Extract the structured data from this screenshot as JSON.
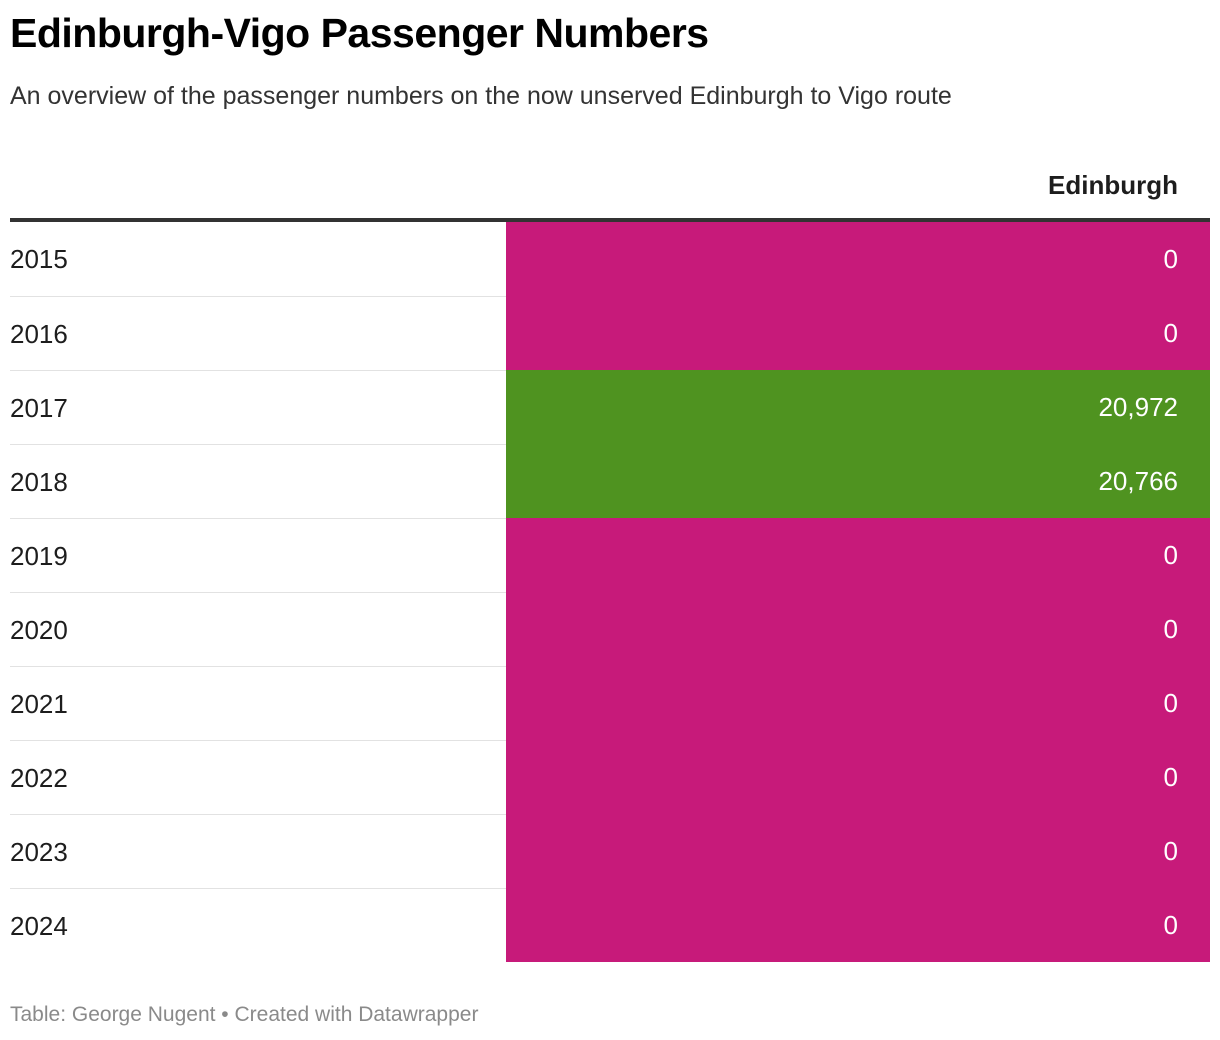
{
  "title": "Edinburgh-Vigo Passenger Numbers",
  "subtitle": "An overview of the passenger numbers on the now unserved Edinburgh to Vigo route",
  "table": {
    "column_header": "Edinburgh",
    "rows": [
      {
        "year": "2015",
        "value": "0"
      },
      {
        "year": "2016",
        "value": "0"
      },
      {
        "year": "2017",
        "value": "20,972"
      },
      {
        "year": "2018",
        "value": "20,766"
      },
      {
        "year": "2019",
        "value": "0"
      },
      {
        "year": "2020",
        "value": "0"
      },
      {
        "year": "2021",
        "value": "0"
      },
      {
        "year": "2022",
        "value": "0"
      },
      {
        "year": "2023",
        "value": "0"
      },
      {
        "year": "2024",
        "value": "0"
      }
    ]
  },
  "colors": {
    "zero": "#c71a7a",
    "nonzero": "#4f9320"
  },
  "footer": {
    "text": "Table: George Nugent • Created with Datawrapper"
  },
  "chart_data": {
    "type": "table",
    "title": "Edinburgh-Vigo Passenger Numbers",
    "subtitle": "An overview of the passenger numbers on the now unserved Edinburgh to Vigo route",
    "categories": [
      "2015",
      "2016",
      "2017",
      "2018",
      "2019",
      "2020",
      "2021",
      "2022",
      "2023",
      "2024"
    ],
    "series": [
      {
        "name": "Edinburgh",
        "values": [
          0,
          0,
          20972,
          20766,
          0,
          0,
          0,
          0,
          0,
          0
        ]
      }
    ]
  }
}
